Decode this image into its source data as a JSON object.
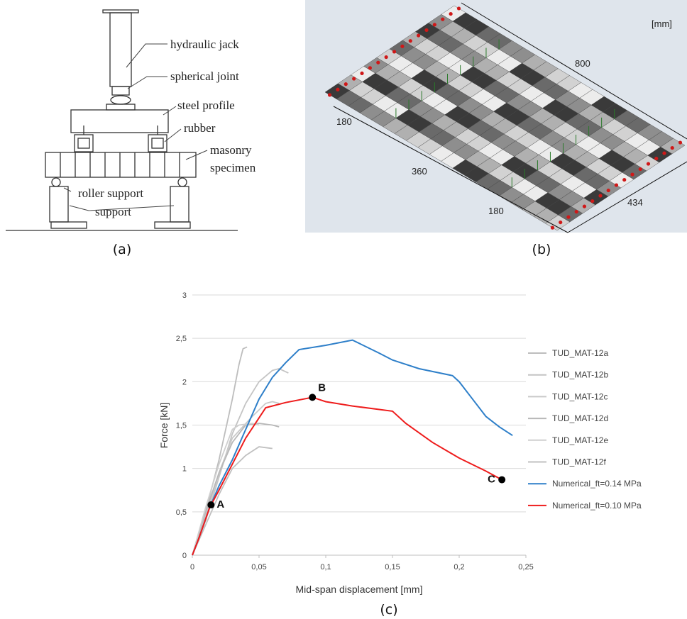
{
  "panel_a": {
    "labels": [
      "hydraulic jack",
      "spherical joint",
      "steel profile",
      "rubber",
      "masonry",
      "specimen",
      "roller support",
      "support"
    ],
    "caption": "(a)"
  },
  "panel_b": {
    "unit": "[mm]",
    "dimensions": [
      "800",
      "180",
      "360",
      "180",
      "434"
    ],
    "caption": "(b)"
  },
  "panel_c": {
    "caption": "(c)"
  },
  "chart_data": {
    "type": "line",
    "x_label": "Mid-span displacement [mm]",
    "y_label": "Force [kN]",
    "xlim": [
      0,
      0.25
    ],
    "ylim": [
      0,
      3
    ],
    "xticks": [
      0,
      {
        "value": 0.05,
        "label": "0,05"
      },
      {
        "value": 0.1,
        "label": "0,1"
      },
      {
        "value": 0.15,
        "label": "0,15"
      },
      {
        "value": 0.2,
        "label": "0,2"
      },
      {
        "value": 0.25,
        "label": "0,25"
      }
    ],
    "yticks": [
      0,
      {
        "value": 0.5,
        "label": "0,5"
      },
      1,
      {
        "value": 1.5,
        "label": "1,5"
      },
      2,
      {
        "value": 2.5,
        "label": "2,5"
      },
      3
    ],
    "grid": true,
    "legend": "right",
    "series": [
      {
        "name": "TUD_MAT-12a",
        "color": "#bdbdbd",
        "x": [
          0,
          0.01,
          0.02,
          0.03,
          0.035,
          0.038,
          0.041
        ],
        "values": [
          0,
          0.5,
          1.1,
          1.8,
          2.2,
          2.38,
          2.4
        ]
      },
      {
        "name": "TUD_MAT-12b",
        "color": "#c4c4c4",
        "x": [
          0,
          0.01,
          0.02,
          0.03,
          0.04,
          0.05,
          0.06,
          0.065,
          0.072
        ],
        "values": [
          0,
          0.4,
          0.9,
          1.4,
          1.75,
          2.0,
          2.13,
          2.15,
          2.1
        ]
      },
      {
        "name": "TUD_MAT-12c",
        "color": "#c9c9c9",
        "x": [
          0,
          0.01,
          0.02,
          0.03,
          0.045,
          0.055,
          0.06,
          0.065
        ],
        "values": [
          0,
          0.45,
          0.95,
          1.35,
          1.6,
          1.75,
          1.77,
          1.75
        ]
      },
      {
        "name": "TUD_MAT-12d",
        "color": "#b8b8b8",
        "x": [
          0,
          0.01,
          0.02,
          0.03,
          0.04,
          0.05,
          0.06,
          0.065
        ],
        "values": [
          0,
          0.5,
          0.95,
          1.3,
          1.5,
          1.52,
          1.5,
          1.48
        ]
      },
      {
        "name": "TUD_MAT-12e",
        "color": "#cfcfcf",
        "x": [
          0,
          0.01,
          0.02,
          0.03,
          0.035,
          0.045,
          0.05
        ],
        "values": [
          0,
          0.55,
          1.05,
          1.45,
          1.5,
          1.52,
          1.5
        ]
      },
      {
        "name": "TUD_MAT-12f",
        "color": "#c0c0c0",
        "x": [
          0,
          0.01,
          0.02,
          0.03,
          0.04,
          0.05,
          0.06
        ],
        "values": [
          0,
          0.35,
          0.7,
          1.0,
          1.15,
          1.25,
          1.23
        ]
      },
      {
        "name": "Numerical_ft=0.14 MPa",
        "color": "#2e7fc9",
        "x": [
          0,
          0.005,
          0.013,
          0.02,
          0.03,
          0.04,
          0.05,
          0.06,
          0.07,
          0.08,
          0.1,
          0.12,
          0.14,
          0.15,
          0.17,
          0.195,
          0.2,
          0.21,
          0.22,
          0.23,
          0.24
        ],
        "values": [
          0,
          0.2,
          0.55,
          0.8,
          1.1,
          1.45,
          1.8,
          2.05,
          2.22,
          2.37,
          2.42,
          2.48,
          2.33,
          2.25,
          2.15,
          2.07,
          2.0,
          1.8,
          1.6,
          1.48,
          1.38
        ]
      },
      {
        "name": "Numerical_ft=0.10 MPa",
        "color": "#ee1c1c",
        "x": [
          0,
          0.005,
          0.013,
          0.02,
          0.03,
          0.04,
          0.055,
          0.07,
          0.09,
          0.1,
          0.12,
          0.15,
          0.16,
          0.18,
          0.2,
          0.22,
          0.232
        ],
        "values": [
          0,
          0.2,
          0.55,
          0.75,
          1.05,
          1.35,
          1.7,
          1.76,
          1.82,
          1.77,
          1.72,
          1.66,
          1.52,
          1.3,
          1.12,
          0.97,
          0.87
        ]
      }
    ],
    "markers": [
      {
        "label": "A",
        "x": 0.014,
        "y": 0.58
      },
      {
        "label": "B",
        "x": 0.09,
        "y": 1.82
      },
      {
        "label": "C",
        "x": 0.232,
        "y": 0.87
      }
    ]
  }
}
